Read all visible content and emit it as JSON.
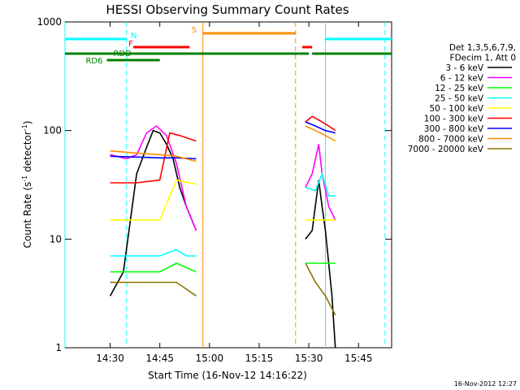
{
  "chart_data": {
    "type": "line",
    "title": "HESSI Observing Summary Count Rates",
    "xlabel": "Start Time (16-Nov-12 14:16:22)",
    "ylabel": "Count Rate (s",
    "ylabel_sup1": "-1",
    "ylabel_mid": " detector",
    "ylabel_sup2": "-1",
    "ylabel_end": ")",
    "y_scale": "log",
    "ylim": [
      1,
      1000
    ],
    "xlim": [
      "14:16:22",
      "15:55:00"
    ],
    "x_ticks": [
      "14:30",
      "14:45",
      "15:00",
      "15:15",
      "15:30",
      "15:45"
    ],
    "y_ticks": [
      "1",
      "10",
      "100",
      "1000"
    ],
    "legend_header": [
      "Det 1,3,5,6,7,9,",
      "FDecim 1, Att 0"
    ],
    "legend_position": "right",
    "series": [
      {
        "name": "3 - 6 keV",
        "color": "#000000",
        "segments": [
          {
            "x": [
              "14:30",
              "14:34",
              "14:38",
              "14:41",
              "14:43",
              "14:45",
              "14:47",
              "14:49",
              "14:51",
              "14:53",
              "14:56"
            ],
            "y": [
              3,
              5,
              40,
              70,
              100,
              95,
              75,
              55,
              30,
              20,
              12
            ]
          },
          {
            "x": [
              "15:29",
              "15:31",
              "15:33",
              "15:34",
              "15:35",
              "15:37",
              "15:38"
            ],
            "y": [
              10,
              12,
              35,
              20,
              12,
              3,
              1
            ]
          }
        ]
      },
      {
        "name": "6 - 12 keV",
        "color": "#ff00ff",
        "segments": [
          {
            "x": [
              "14:30",
              "14:35",
              "14:38",
              "14:41",
              "14:44",
              "14:47",
              "14:50",
              "14:53",
              "14:56"
            ],
            "y": [
              60,
              55,
              60,
              95,
              110,
              90,
              50,
              20,
              12
            ]
          },
          {
            "x": [
              "15:29",
              "15:31",
              "15:33",
              "15:34",
              "15:36",
              "15:38"
            ],
            "y": [
              30,
              40,
              75,
              40,
              20,
              15
            ]
          }
        ]
      },
      {
        "name": "12 - 25 keV",
        "color": "#00ff00",
        "segments": [
          {
            "x": [
              "14:30",
              "14:38",
              "14:45",
              "14:50",
              "14:56"
            ],
            "y": [
              5,
              5,
              5,
              6,
              5
            ]
          },
          {
            "x": [
              "15:29",
              "15:33",
              "15:38"
            ],
            "y": [
              6,
              6,
              6
            ]
          }
        ]
      },
      {
        "name": "25 - 50 keV",
        "color": "#00ffff",
        "segments": [
          {
            "x": [
              "14:30",
              "14:38",
              "14:45",
              "14:50",
              "14:53",
              "14:56"
            ],
            "y": [
              7,
              7,
              7,
              8,
              7,
              7
            ]
          },
          {
            "x": [
              "15:29",
              "15:32",
              "15:34",
              "15:36",
              "15:38"
            ],
            "y": [
              30,
              28,
              40,
              25,
              25
            ]
          }
        ]
      },
      {
        "name": "50 - 100 keV",
        "color": "#ffff00",
        "segments": [
          {
            "x": [
              "14:30",
              "14:38",
              "14:45",
              "14:50",
              "14:56"
            ],
            "y": [
              15,
              15,
              15,
              35,
              32
            ]
          },
          {
            "x": [
              "15:29",
              "15:33",
              "15:38"
            ],
            "y": [
              15,
              15,
              15
            ]
          }
        ]
      },
      {
        "name": "100 - 300 keV",
        "color": "#ff0000",
        "segments": [
          {
            "x": [
              "14:30",
              "14:38",
              "14:45",
              "14:48",
              "14:51",
              "14:56"
            ],
            "y": [
              33,
              33,
              35,
              95,
              90,
              80
            ]
          },
          {
            "x": [
              "15:29",
              "15:31",
              "15:33",
              "15:36",
              "15:38"
            ],
            "y": [
              120,
              135,
              125,
              110,
              100
            ]
          }
        ]
      },
      {
        "name": "300 - 800 keV",
        "color": "#0000ff",
        "segments": [
          {
            "x": [
              "14:30",
              "14:38",
              "14:45",
              "14:50",
              "14:56"
            ],
            "y": [
              58,
              57,
              56,
              56,
              55
            ]
          },
          {
            "x": [
              "15:29",
              "15:32",
              "15:35",
              "15:38"
            ],
            "y": [
              120,
              110,
              100,
              95
            ]
          }
        ]
      },
      {
        "name": "800 - 7000 keV",
        "color": "#ff8c00",
        "segments": [
          {
            "x": [
              "14:30",
              "14:38",
              "14:45",
              "14:50",
              "14:56"
            ],
            "y": [
              65,
              62,
              60,
              58,
              52
            ]
          },
          {
            "x": [
              "15:29",
              "15:32",
              "15:35",
              "15:38"
            ],
            "y": [
              110,
              100,
              90,
              80
            ]
          }
        ]
      },
      {
        "name": "7000 - 20000 keV",
        "color": "#8b7500",
        "segments": [
          {
            "x": [
              "14:30",
              "14:38",
              "14:45",
              "14:50",
              "14:56"
            ],
            "y": [
              4,
              4,
              4,
              4,
              3
            ]
          },
          {
            "x": [
              "15:29",
              "15:32",
              "15:35",
              "15:38"
            ],
            "y": [
              6,
              4,
              3,
              2
            ]
          }
        ]
      }
    ],
    "flags": [
      {
        "label": "N",
        "color": "#00ffff",
        "segments": [
          [
            "14:16:22",
            "14:35"
          ],
          [
            "15:35",
            "15:55"
          ]
        ]
      },
      {
        "label": "S",
        "color": "#ff8c00",
        "segments": [
          [
            "14:58",
            "15:26"
          ]
        ]
      },
      {
        "label": "F",
        "color": "#ff0000",
        "segments": [
          [
            "14:37",
            "14:54"
          ],
          [
            "15:28",
            "15:31"
          ]
        ]
      },
      {
        "label": "RDD",
        "color": "#008000",
        "segments": [
          [
            "14:16:22",
            "15:27"
          ],
          [
            "15:27",
            "15:30"
          ],
          [
            "15:31",
            "15:55"
          ]
        ]
      },
      {
        "label": "RD6",
        "color": "#008000",
        "segments": [
          [
            "14:29",
            "14:45"
          ]
        ]
      }
    ],
    "vlines": [
      {
        "x": "14:16:22",
        "color": "#00ffff",
        "style": "solid"
      },
      {
        "x": "14:35",
        "color": "#00ffff",
        "style": "dashed"
      },
      {
        "x": "14:58",
        "color": "#ff8c00",
        "style": "solid"
      },
      {
        "x": "15:26",
        "color": "#ff8c00",
        "style": "dashed"
      },
      {
        "x": "15:35",
        "color": "#00ffff",
        "style": "solid"
      },
      {
        "x": "15:53",
        "color": "#00ffff",
        "style": "dashed"
      }
    ],
    "timestamp": "16-Nov-2012 12:27"
  }
}
